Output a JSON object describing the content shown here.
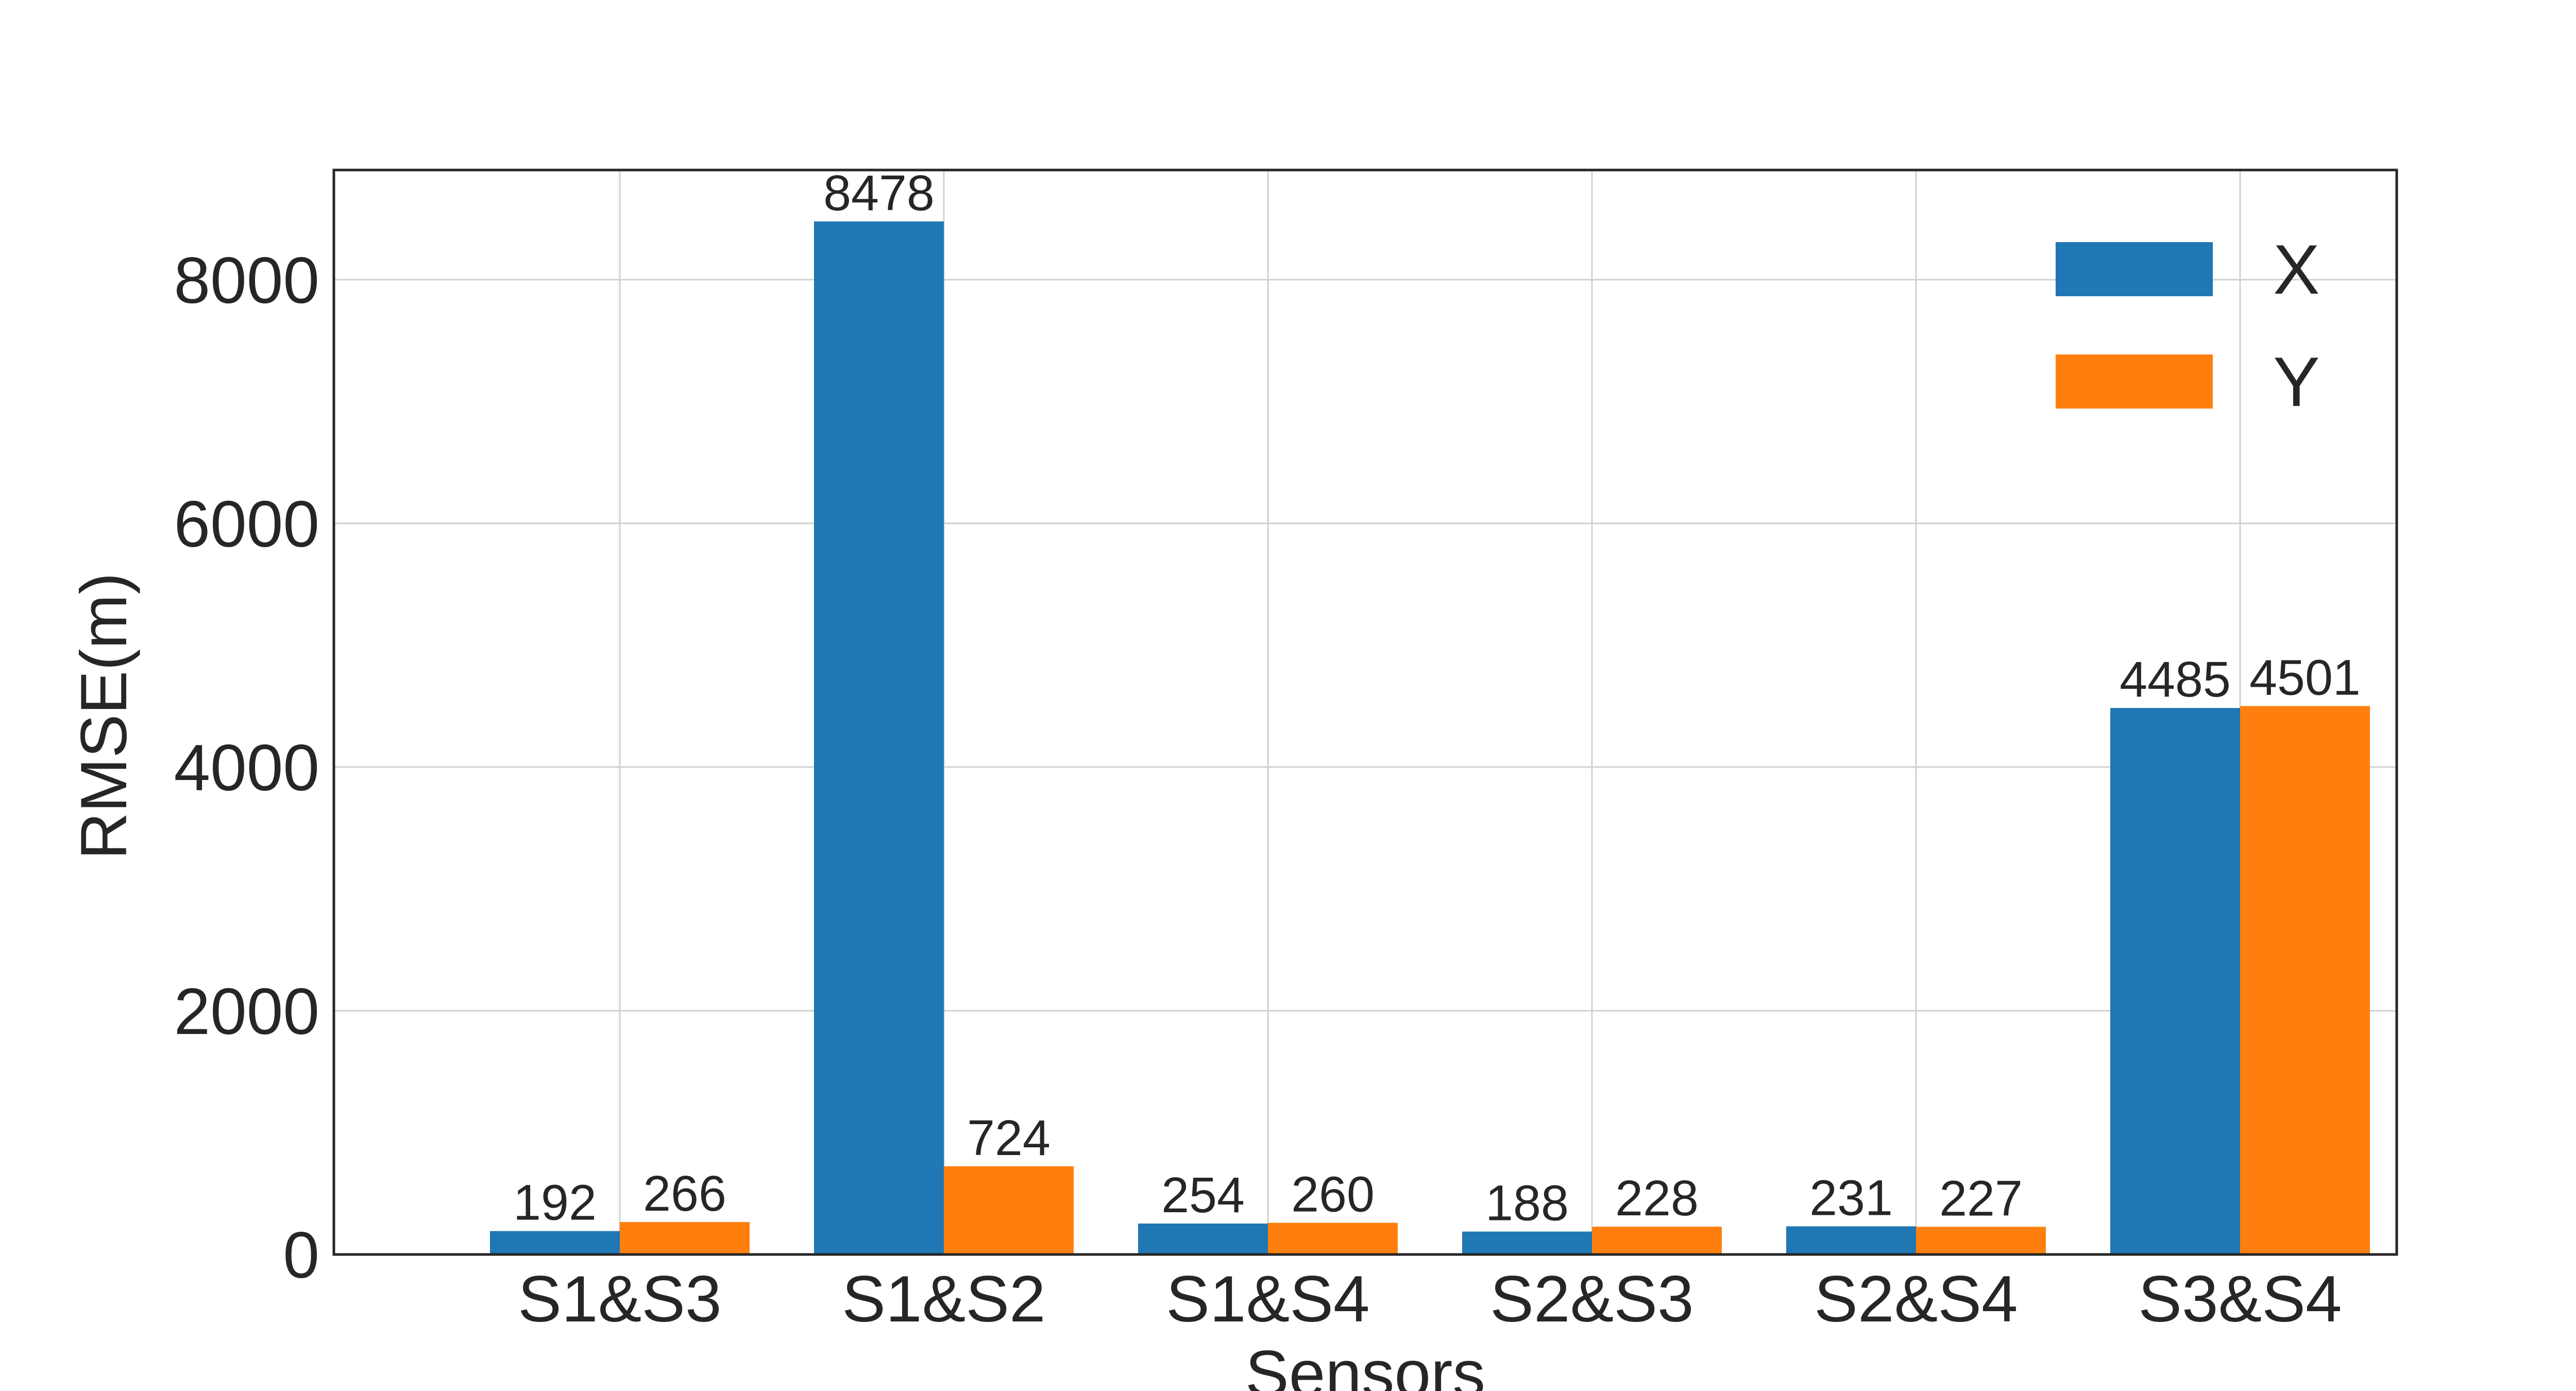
{
  "chart_data": {
    "type": "bar",
    "title": "",
    "xlabel": "Sensors",
    "ylabel": "RMSE(m)",
    "categories": [
      "S1&S3",
      "S1&S2",
      "S1&S4",
      "S2&S3",
      "S2&S4",
      "S3&S4"
    ],
    "series": [
      {
        "name": "X",
        "color": "#1f77b4",
        "values": [
          192,
          8478,
          254,
          188,
          231,
          4485
        ]
      },
      {
        "name": "Y",
        "color": "#ff7f0e",
        "values": [
          266,
          724,
          260,
          228,
          227,
          4501
        ]
      }
    ],
    "ylim": [
      0,
      8900
    ],
    "yticks": [
      0,
      2000,
      4000,
      6000,
      8000
    ],
    "grid": true,
    "legend": "top-right"
  }
}
